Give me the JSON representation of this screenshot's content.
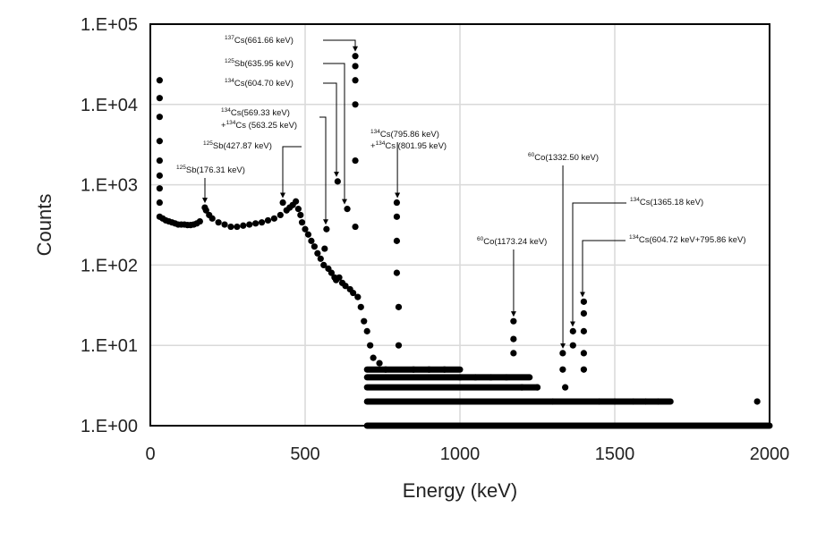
{
  "chart_data": {
    "type": "scatter",
    "title": "",
    "xlabel": "Energy (keV)",
    "ylabel": "Counts",
    "xlim": [
      0,
      2000
    ],
    "ylim": [
      1,
      100000
    ],
    "yscale": "log",
    "grid": true,
    "legend": "none",
    "marker_color": "#000000",
    "x_ticks": [
      "0",
      "500",
      "1000",
      "1500",
      "2000"
    ],
    "y_ticks": [
      "1.E+00",
      "1.E+01",
      "1.E+02",
      "1.E+03",
      "1.E+04",
      "1.E+05"
    ],
    "series": [
      {
        "points": [
          [
            30,
            400
          ],
          [
            30,
            600
          ],
          [
            30,
            900
          ],
          [
            30,
            1300
          ],
          [
            30,
            2000
          ],
          [
            30,
            3500
          ],
          [
            30,
            7000
          ],
          [
            30,
            12000
          ],
          [
            30,
            20000
          ],
          [
            40,
            380
          ],
          [
            50,
            360
          ],
          [
            60,
            350
          ],
          [
            70,
            340
          ],
          [
            80,
            330
          ],
          [
            90,
            320
          ],
          [
            100,
            320
          ],
          [
            110,
            320
          ],
          [
            120,
            315
          ],
          [
            130,
            315
          ],
          [
            140,
            320
          ],
          [
            150,
            330
          ],
          [
            160,
            350
          ],
          [
            176,
            520
          ],
          [
            180,
            480
          ],
          [
            190,
            420
          ],
          [
            200,
            380
          ],
          [
            220,
            340
          ],
          [
            240,
            320
          ],
          [
            260,
            300
          ],
          [
            280,
            300
          ],
          [
            300,
            310
          ],
          [
            320,
            320
          ],
          [
            340,
            330
          ],
          [
            360,
            340
          ],
          [
            380,
            360
          ],
          [
            400,
            380
          ],
          [
            420,
            420
          ],
          [
            428,
            600
          ],
          [
            440,
            480
          ],
          [
            450,
            520
          ],
          [
            460,
            560
          ],
          [
            470,
            620
          ],
          [
            478,
            500
          ],
          [
            485,
            420
          ],
          [
            490,
            340
          ],
          [
            500,
            280
          ],
          [
            510,
            240
          ],
          [
            520,
            200
          ],
          [
            530,
            170
          ],
          [
            540,
            140
          ],
          [
            550,
            120
          ],
          [
            560,
            100
          ],
          [
            563,
            160
          ],
          [
            569,
            280
          ],
          [
            575,
            90
          ],
          [
            585,
            80
          ],
          [
            595,
            70
          ],
          [
            600,
            65
          ],
          [
            605,
            1100
          ],
          [
            610,
            70
          ],
          [
            620,
            60
          ],
          [
            630,
            55
          ],
          [
            636,
            500
          ],
          [
            645,
            50
          ],
          [
            655,
            45
          ],
          [
            662,
            40000
          ],
          [
            662,
            30000
          ],
          [
            662,
            20000
          ],
          [
            662,
            10000
          ],
          [
            662,
            2000
          ],
          [
            662,
            300
          ],
          [
            670,
            40
          ],
          [
            680,
            30
          ],
          [
            690,
            20
          ],
          [
            700,
            15
          ],
          [
            710,
            10
          ],
          [
            720,
            7
          ],
          [
            740,
            6
          ],
          [
            760,
            5
          ],
          [
            796,
            600
          ],
          [
            796,
            400
          ],
          [
            796,
            200
          ],
          [
            796,
            80
          ],
          [
            802,
            30
          ],
          [
            802,
            10
          ],
          [
            850,
            5
          ],
          [
            900,
            5
          ],
          [
            950,
            5
          ],
          [
            1000,
            4
          ],
          [
            1050,
            4
          ],
          [
            1100,
            4
          ],
          [
            1150,
            4
          ],
          [
            1173,
            20
          ],
          [
            1173,
            12
          ],
          [
            1173,
            8
          ],
          [
            1200,
            3
          ],
          [
            1250,
            3
          ],
          [
            1300,
            2
          ],
          [
            1332,
            8
          ],
          [
            1332,
            5
          ],
          [
            1340,
            3
          ],
          [
            1365,
            15
          ],
          [
            1365,
            10
          ],
          [
            1400,
            35
          ],
          [
            1400,
            25
          ],
          [
            1400,
            15
          ],
          [
            1400,
            8
          ],
          [
            1400,
            5
          ],
          [
            1450,
            2
          ],
          [
            1500,
            2
          ],
          [
            1560,
            2
          ],
          [
            1600,
            2
          ],
          [
            1640,
            2
          ],
          [
            1960,
            2
          ]
        ]
      }
    ],
    "annotations": [
      {
        "sup": "137",
        "text": "Cs(661.66 keV)",
        "target_x": 661.66,
        "target_y": 40000
      },
      {
        "sup": "125",
        "text": "Sb(635.95 keV)",
        "target_x": 635.95,
        "target_y": 500
      },
      {
        "sup": "134",
        "text": "Cs(604.70 keV)",
        "target_x": 604.7,
        "target_y": 1100
      },
      {
        "sup": "134",
        "text": "Cs(569.33 keV)",
        "sup2": "134",
        "text2": "Cs (563.25 keV)",
        "prefix2": "+",
        "target_x": 569.33,
        "target_y": 280
      },
      {
        "sup": "125",
        "text": "Sb(427.87 keV)",
        "target_x": 427.87,
        "target_y": 600
      },
      {
        "sup": "125",
        "text": "Sb(176.31 keV)",
        "target_x": 176.31,
        "target_y": 520
      },
      {
        "sup": "134",
        "text": "Cs(795.86 keV)",
        "sup2": "134",
        "text2": "Cs (801.95 keV)",
        "prefix2": "+",
        "target_x": 798,
        "target_y": 600
      },
      {
        "sup": "60",
        "text": "Co(1332.50 keV)",
        "target_x": 1332.5,
        "target_y": 8
      },
      {
        "sup": "60",
        "text": "Co(1173.24 keV)",
        "target_x": 1173.24,
        "target_y": 20
      },
      {
        "sup": "134",
        "text": "Cs(1365.18 keV)",
        "target_x": 1365.18,
        "target_y": 15
      },
      {
        "sup": "134",
        "text": "Cs(604.72 keV+795.86 keV)",
        "target_x": 1400,
        "target_y": 35
      }
    ]
  }
}
